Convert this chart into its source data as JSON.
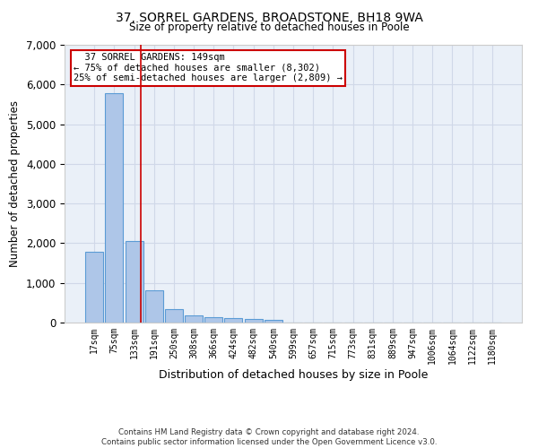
{
  "title1": "37, SORREL GARDENS, BROADSTONE, BH18 9WA",
  "title2": "Size of property relative to detached houses in Poole",
  "xlabel": "Distribution of detached houses by size in Poole",
  "ylabel": "Number of detached properties",
  "footnote1": "Contains HM Land Registry data © Crown copyright and database right 2024.",
  "footnote2": "Contains public sector information licensed under the Open Government Licence v3.0.",
  "bar_labels": [
    "17sqm",
    "75sqm",
    "133sqm",
    "191sqm",
    "250sqm",
    "308sqm",
    "366sqm",
    "424sqm",
    "482sqm",
    "540sqm",
    "599sqm",
    "657sqm",
    "715sqm",
    "773sqm",
    "831sqm",
    "889sqm",
    "947sqm",
    "1006sqm",
    "1064sqm",
    "1122sqm",
    "1180sqm"
  ],
  "bar_values": [
    1780,
    5780,
    2060,
    820,
    340,
    190,
    130,
    110,
    90,
    60,
    0,
    0,
    0,
    0,
    0,
    0,
    0,
    0,
    0,
    0,
    0
  ],
  "bar_color": "#aec6e8",
  "bar_edgecolor": "#5b9bd5",
  "annotation_text": "  37 SORREL GARDENS: 149sqm\n← 75% of detached houses are smaller (8,302)\n25% of semi-detached houses are larger (2,809) →",
  "annotation_box_color": "#ffffff",
  "annotation_box_edgecolor": "#cc0000",
  "redline_x": 2.35,
  "ylim": [
    0,
    7000
  ],
  "yticks": [
    0,
    1000,
    2000,
    3000,
    4000,
    5000,
    6000,
    7000
  ],
  "grid_color": "#d0d8e8",
  "background_color": "#eaf0f8",
  "property_size": 149,
  "figsize": [
    6.0,
    5.0
  ],
  "dpi": 100
}
